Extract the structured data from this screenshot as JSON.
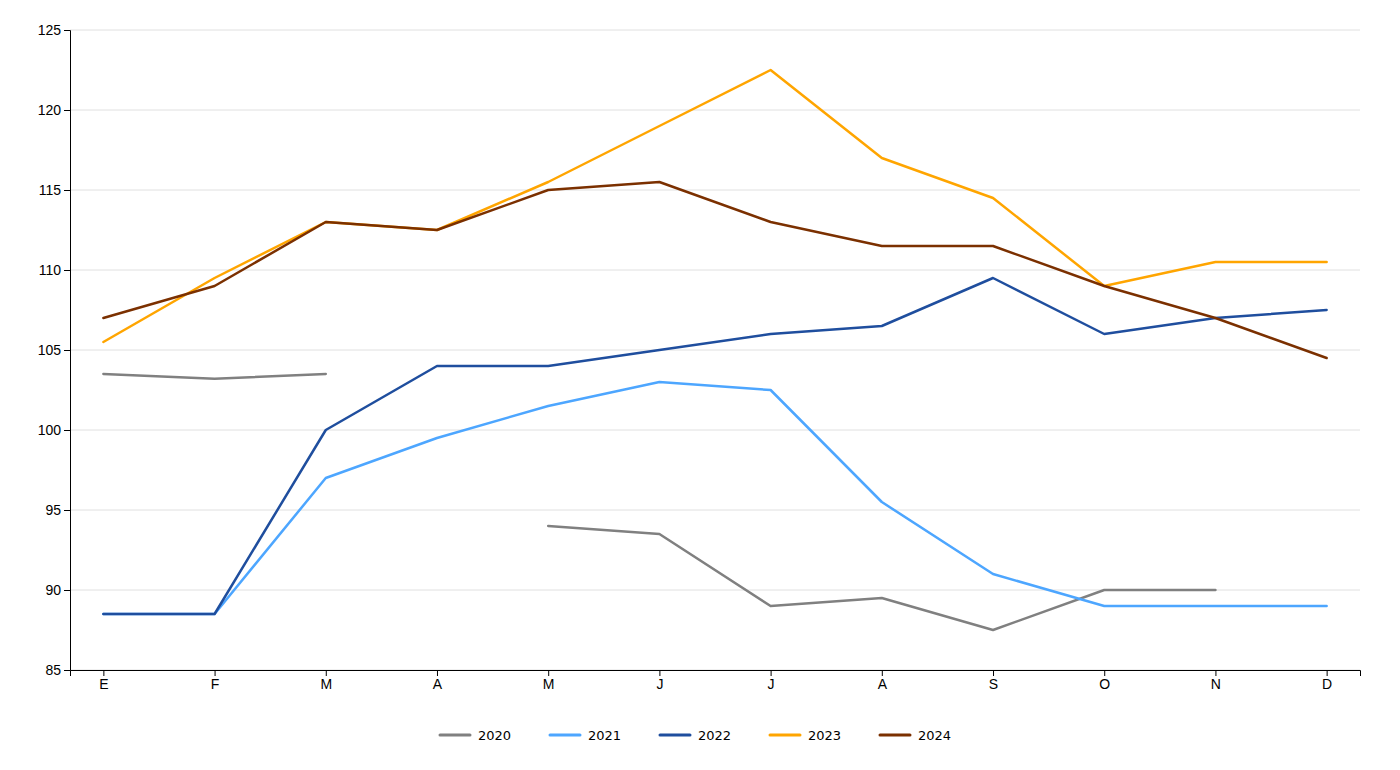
{
  "chart_data": {
    "type": "line",
    "categories": [
      "E",
      "F",
      "M",
      "A",
      "M",
      "J",
      "J",
      "A",
      "S",
      "O",
      "N",
      "D"
    ],
    "series": [
      {
        "name": "2020",
        "color": "#808080",
        "values": [
          103.5,
          103.2,
          103.5,
          null,
          94.0,
          93.5,
          89.0,
          89.5,
          87.5,
          90.0,
          90.0,
          null
        ]
      },
      {
        "name": "2021",
        "color": "#4da6ff",
        "values": [
          88.5,
          88.5,
          97.0,
          99.5,
          101.5,
          103.0,
          102.5,
          95.5,
          91.0,
          89.0,
          89.0,
          89.0
        ]
      },
      {
        "name": "2022",
        "color": "#1f4e9e",
        "values": [
          88.5,
          88.5,
          100.0,
          104.0,
          104.0,
          105.0,
          106.0,
          106.5,
          109.5,
          106.0,
          107.0,
          107.5
        ]
      },
      {
        "name": "2023",
        "color": "#ffa500",
        "values": [
          105.5,
          109.5,
          113.0,
          112.5,
          115.5,
          119.0,
          122.5,
          117.0,
          114.5,
          109.0,
          110.5,
          110.5
        ]
      },
      {
        "name": "2024",
        "color": "#7b3000",
        "values": [
          107.0,
          109.0,
          113.0,
          112.5,
          115.0,
          115.5,
          113.0,
          111.5,
          111.5,
          109.0,
          107.0,
          104.5
        ]
      }
    ],
    "ylim": [
      85,
      125
    ],
    "yticks": [
      85,
      90,
      95,
      100,
      105,
      110,
      115,
      120,
      125
    ],
    "grid": true,
    "legend": "bottom"
  }
}
